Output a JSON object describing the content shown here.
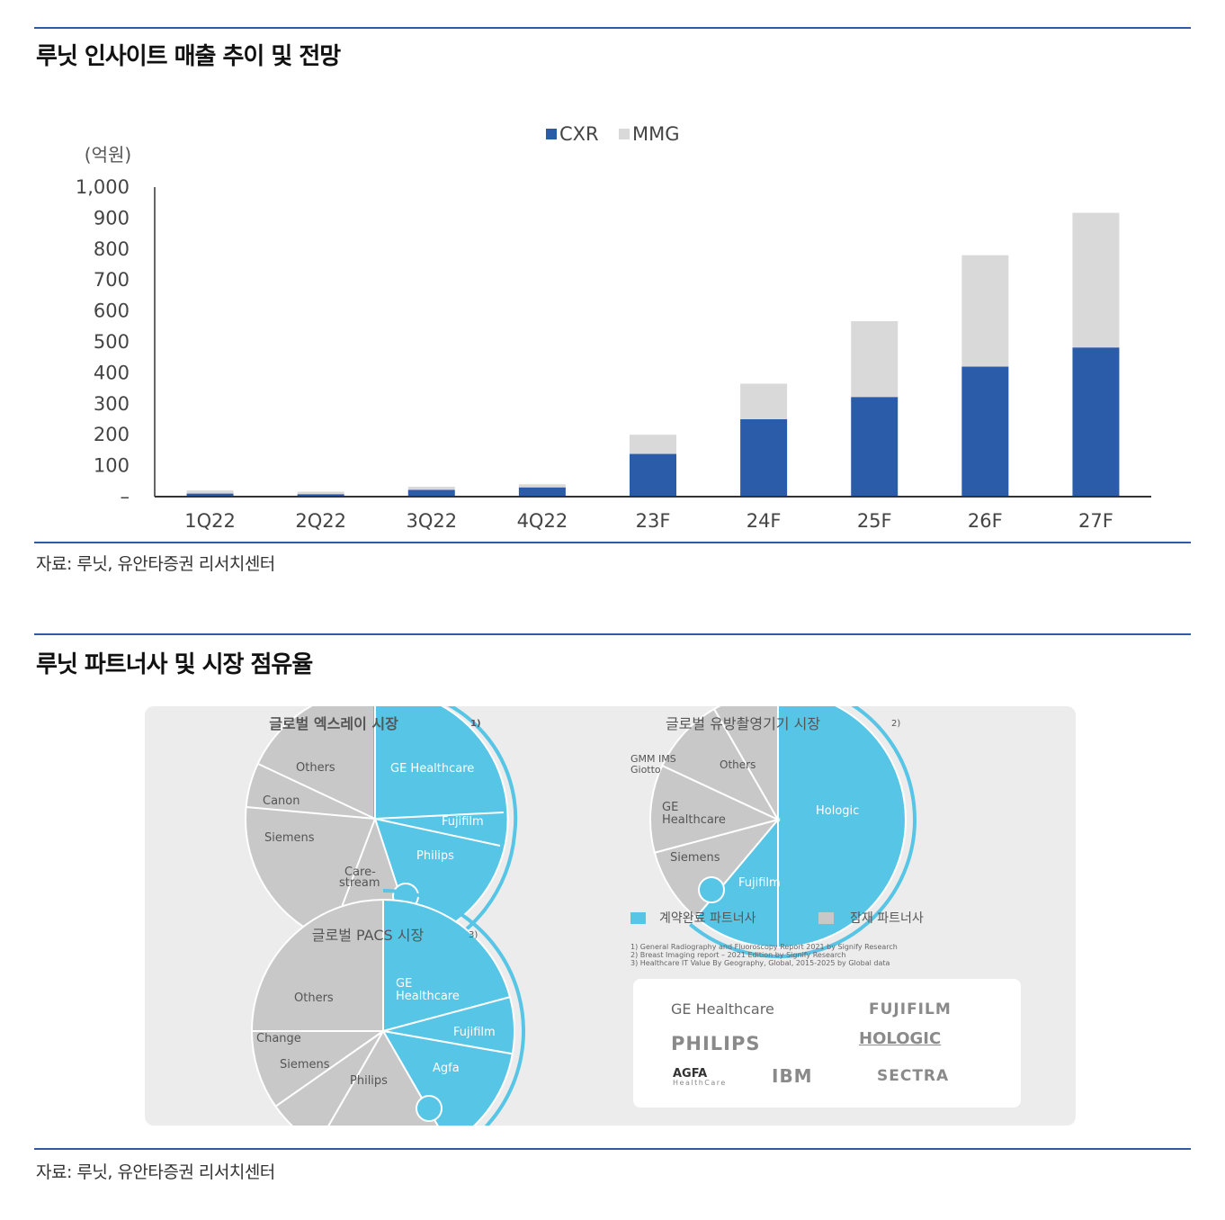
{
  "section1": {
    "title": "루닛 인사이트 매출 추이 및 전망",
    "source": "자료: 루닛, 유안타증권 리서치센터"
  },
  "chart_data": {
    "type": "bar",
    "stacked": true,
    "title": "",
    "ylabel": "(억원)",
    "xlabel": "",
    "categories": [
      "1Q22",
      "2Q22",
      "3Q22",
      "4Q22",
      "23F",
      "24F",
      "25F",
      "26F",
      "27F"
    ],
    "series": [
      {
        "name": "CXR",
        "color": "#2a5caa",
        "values": [
          10,
          8,
          22,
          30,
          138,
          250,
          322,
          420,
          482
        ]
      },
      {
        "name": "MMG",
        "color": "#d9d9d9",
        "values": [
          10,
          8,
          10,
          10,
          62,
          115,
          245,
          360,
          435
        ]
      }
    ],
    "ylim": [
      0,
      1000
    ],
    "yticks": [
      "–",
      "100",
      "200",
      "300",
      "400",
      "500",
      "600",
      "700",
      "800",
      "900",
      "1,000"
    ],
    "legend": "top-center",
    "grid": false
  },
  "section2": {
    "title": "루닛 파트너사 및 시장 점유율",
    "source": "자료: 루닛, 유안타증권 리서치센터",
    "pie_xray": {
      "title": "글로벌 엑스레이 시장",
      "sup": "1)",
      "labels": [
        "GE Healthcare",
        "Fujifilm",
        "Philips",
        "Care-",
        "stream",
        "Siemens",
        "Canon",
        "Others"
      ]
    },
    "pie_mmg": {
      "title": "글로벌 유방촬영기기 시장",
      "sup": "2)",
      "labels": [
        "Hologic",
        "Fujifilm",
        "Siemens",
        "GE",
        "Healthcare",
        "GMM IMS",
        "Giotto",
        "Others"
      ]
    },
    "pie_pacs": {
      "title": "글로벌 PACS 시장",
      "sup": "3)",
      "labels": [
        "GE",
        "Healthcare",
        "Fujifilm",
        "Agfa",
        "Philips",
        "Siemens",
        "Change",
        "Others"
      ]
    },
    "legend": {
      "contracted": "계약완료 파트너사",
      "potential": "잠재 파트너사",
      "contracted_color": "#56c5e6",
      "potential_color": "#c8c8c8"
    },
    "footnotes": [
      "1) General Radiography and Fluoroscopy Report 2021 by Signify Research",
      "2) Breast Imaging report – 2021 Edition by Signify Research",
      "3) Healthcare IT Value By Geography, Global, 2015-2025 by Global data"
    ],
    "logos": [
      "GE Healthcare",
      "FUJIFILM",
      "PHILIPS",
      "HOLOGIC",
      "AGFA",
      "HealthCare",
      "IBM",
      "SECTRA"
    ]
  }
}
